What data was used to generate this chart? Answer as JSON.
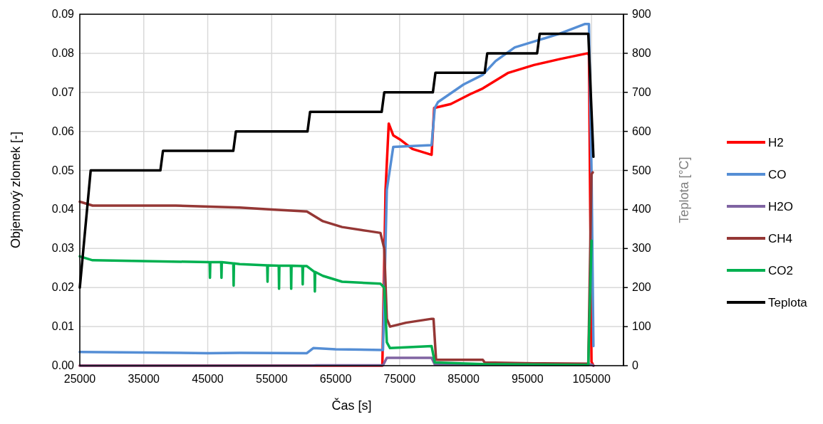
{
  "chart_data": {
    "type": "line",
    "xlabel": "Čas [s]",
    "ylabel": "Objemový zlomek [-]",
    "y2label": "Teplota [°C]",
    "xlim": [
      25000,
      110000
    ],
    "xticks": [
      25000,
      35000,
      45000,
      55000,
      65000,
      75000,
      85000,
      95000,
      105000
    ],
    "ylim": [
      0,
      0.09
    ],
    "yticks": [
      {
        "value": 0,
        "label": "0.00"
      },
      {
        "value": 0.01,
        "label": "0.01"
      },
      {
        "value": 0.02,
        "label": "0.02"
      },
      {
        "value": 0.03,
        "label": "0.03"
      },
      {
        "value": 0.04,
        "label": "0.04"
      },
      {
        "value": 0.05,
        "label": "0.05"
      },
      {
        "value": 0.06,
        "label": "0.06"
      },
      {
        "value": 0.07,
        "label": "0.07"
      },
      {
        "value": 0.08,
        "label": "0.08"
      },
      {
        "value": 0.09,
        "label": "0.09"
      }
    ],
    "y2lim": [
      0,
      900
    ],
    "y2ticks": [
      0,
      100,
      200,
      300,
      400,
      500,
      600,
      700,
      800,
      900
    ],
    "grid": true,
    "legend": "right",
    "line_style": "solid",
    "marker": "none",
    "series": [
      {
        "name": "H2",
        "color": "#ff0000",
        "x": [
          25000,
          72300,
          72800,
          73300,
          74000,
          75000,
          77000,
          80000,
          80400,
          83000,
          86000,
          88000,
          92000,
          96000,
          100000,
          104400,
          104600,
          105000,
          105300
        ],
        "values": [
          0,
          0,
          0.045,
          0.062,
          0.059,
          0.058,
          0.0555,
          0.054,
          0.066,
          0.067,
          0.0695,
          0.071,
          0.075,
          0.077,
          0.0785,
          0.08,
          0.0795,
          0.001,
          0
        ]
      },
      {
        "name": "CO",
        "color": "#558ed5",
        "x": [
          25000,
          45000,
          50000,
          60500,
          61500,
          65000,
          72400,
          73000,
          74000,
          80000,
          80500,
          81000,
          85000,
          88000,
          90000,
          93000,
          96000,
          100000,
          104000,
          104600,
          105000,
          105300
        ],
        "values": [
          0.0035,
          0.0032,
          0.0033,
          0.0032,
          0.0045,
          0.0042,
          0.004,
          0.045,
          0.056,
          0.0565,
          0.066,
          0.0675,
          0.072,
          0.0745,
          0.078,
          0.0815,
          0.083,
          0.085,
          0.0875,
          0.0875,
          0.05,
          0.005
        ]
      },
      {
        "name": "H2O",
        "color": "#8064a2",
        "x": [
          25000,
          61000,
          62000,
          72400,
          73000,
          80000,
          80500,
          105000,
          105300
        ],
        "values": [
          0,
          0,
          0.0001,
          0.0001,
          0.002,
          0.002,
          0.0003,
          0.0003,
          0
        ]
      },
      {
        "name": "CH4",
        "color": "#953735",
        "x": [
          25000,
          27000,
          40000,
          50000,
          55000,
          60500,
          63000,
          66000,
          70000,
          72000,
          72600,
          73000,
          73500,
          76000,
          80000,
          80300,
          80700,
          88000,
          88300,
          96000,
          104500,
          105000,
          105200
        ],
        "values": [
          0.042,
          0.041,
          0.041,
          0.0405,
          0.04,
          0.0395,
          0.037,
          0.0355,
          0.0345,
          0.034,
          0.03,
          0.012,
          0.01,
          0.011,
          0.012,
          0.012,
          0.0015,
          0.0015,
          0.0008,
          0.0006,
          0.0005,
          0.049,
          0.0495
        ]
      },
      {
        "name": "CO2",
        "color": "#00b050",
        "x": [
          25000,
          27000,
          45300,
          45350,
          45400,
          47100,
          47150,
          47200,
          49000,
          49050,
          49100,
          50000,
          54300,
          54350,
          54400,
          56100,
          56150,
          56200,
          58000,
          58050,
          58100,
          59800,
          59850,
          59900,
          60500,
          61700,
          61750,
          61800,
          63000,
          66000,
          72000,
          72600,
          73000,
          73500,
          80000,
          80500,
          88000,
          104500,
          105000
        ],
        "values": [
          0.028,
          0.027,
          0.0265,
          0.0225,
          0.0265,
          0.0265,
          0.0225,
          0.0265,
          0.0262,
          0.0205,
          0.0262,
          0.026,
          0.0257,
          0.0215,
          0.0257,
          0.0256,
          0.0197,
          0.0256,
          0.0256,
          0.0197,
          0.0256,
          0.0255,
          0.0208,
          0.0255,
          0.0255,
          0.024,
          0.019,
          0.024,
          0.023,
          0.0215,
          0.021,
          0.02,
          0.006,
          0.0045,
          0.005,
          0.0008,
          0.0004,
          0.0002,
          0.032
        ]
      },
      {
        "name": "Teplota",
        "color": "#000000",
        "axis": "y2",
        "x": [
          25000,
          26700,
          37600,
          38000,
          49000,
          49400,
          60600,
          61000,
          72200,
          72600,
          80200,
          80600,
          88300,
          88700,
          96500,
          96900,
          104500,
          105300
        ],
        "values": [
          200,
          500,
          500,
          550,
          550,
          600,
          600,
          650,
          650,
          700,
          700,
          750,
          750,
          800,
          800,
          850,
          850,
          535
        ]
      }
    ]
  }
}
